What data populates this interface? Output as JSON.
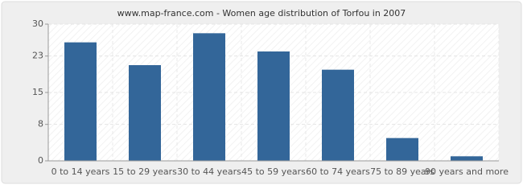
{
  "chart_data": {
    "type": "bar",
    "title": "www.map-france.com - Women age distribution of Torfou in 2007",
    "categories": [
      "0 to 14 years",
      "15 to 29 years",
      "30 to 44 years",
      "45 to 59 years",
      "60 to 74 years",
      "75 to 89 years",
      "90 years and more"
    ],
    "values": [
      26,
      21,
      28,
      24,
      20,
      5,
      1
    ],
    "color": "#336699",
    "ylim": [
      0,
      30
    ],
    "yticks": [
      0,
      8,
      15,
      23,
      30
    ],
    "grid": true
  }
}
